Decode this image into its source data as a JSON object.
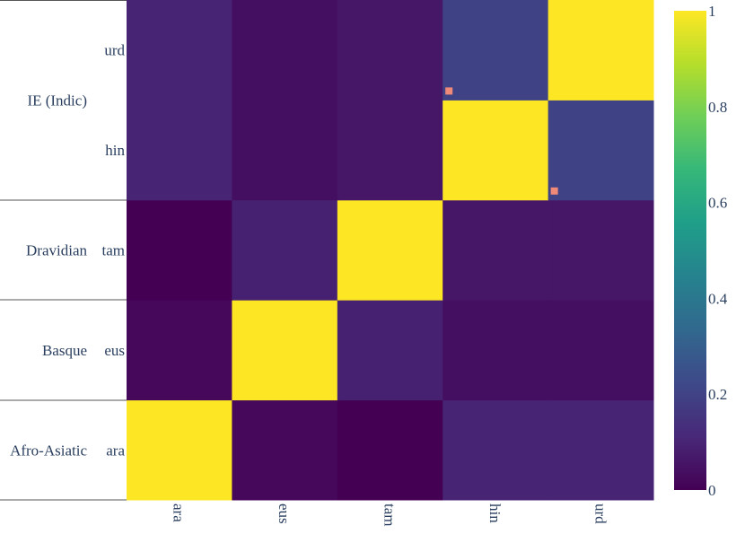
{
  "chart_data": {
    "type": "heatmap",
    "title": "",
    "xlabel": "",
    "ylabel": "",
    "x_categories": [
      "ara",
      "eus",
      "tam",
      "hin",
      "urd"
    ],
    "y_categories": [
      "ara",
      "eus",
      "tam",
      "hin",
      "urd"
    ],
    "y_groups": [
      {
        "label": "Afro-Asiatic",
        "members": [
          "ara"
        ]
      },
      {
        "label": "Basque",
        "members": [
          "eus"
        ]
      },
      {
        "label": "Dravidian",
        "members": [
          "tam"
        ]
      },
      {
        "label": "IE (Indic)",
        "members": [
          "hin",
          "urd"
        ]
      }
    ],
    "z": [
      [
        1.0,
        0.02,
        0.0,
        0.1,
        0.1
      ],
      [
        0.02,
        1.0,
        0.09,
        0.04,
        0.04
      ],
      [
        0.0,
        0.09,
        1.0,
        0.06,
        0.06
      ],
      [
        0.1,
        0.04,
        0.06,
        1.0,
        0.2
      ],
      [
        0.1,
        0.04,
        0.06,
        0.2,
        1.0
      ]
    ],
    "colorscale": "Viridis",
    "zlim": [
      0,
      1
    ],
    "colorbar_ticks": [
      0,
      0.2,
      0.4,
      0.6,
      0.8,
      1
    ],
    "colorbar_tick_labels": [
      "0",
      "0.2",
      "0.4",
      "0.6",
      "0.8",
      "1"
    ],
    "markers": [
      {
        "x": "hin",
        "y": "urd",
        "color": "#f08a78"
      },
      {
        "x": "urd",
        "y": "hin",
        "color": "#f08a78"
      }
    ]
  }
}
